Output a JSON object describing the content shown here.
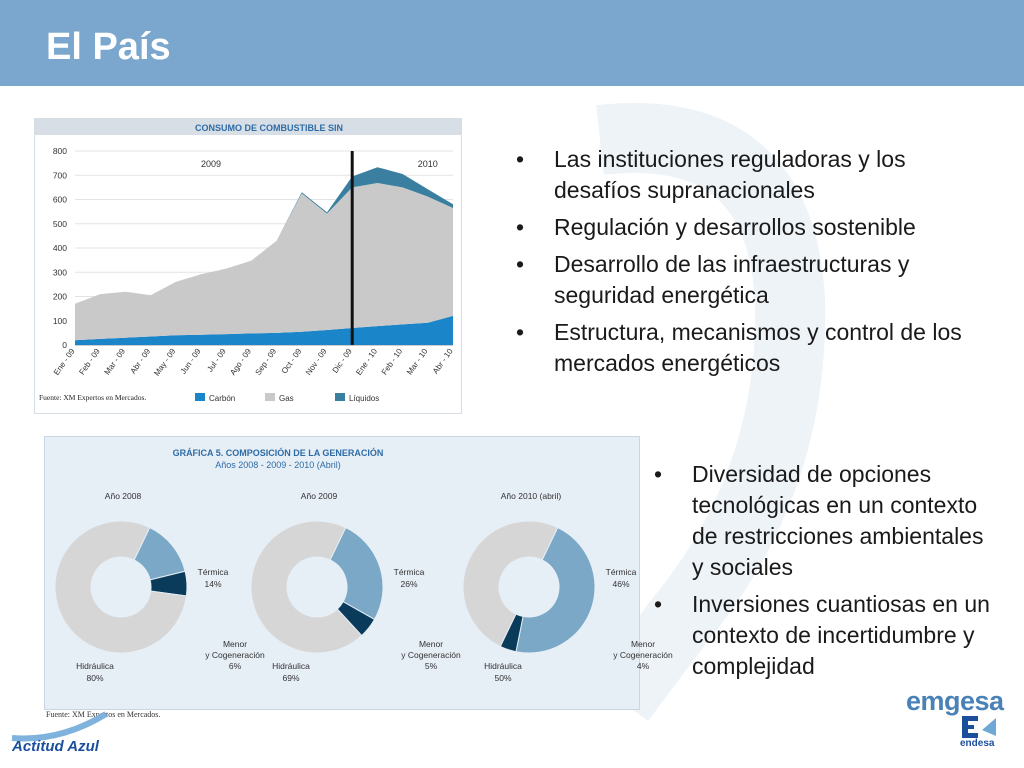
{
  "header": {
    "title": "El País"
  },
  "chart1": {
    "title": "CONSUMO DE COMBUSTIBLE SIN",
    "source": "Fuente: XM Expertos en Mercados.",
    "chart_data": {
      "type": "area",
      "title": "CONSUMO DE COMBUSTIBLE SIN",
      "categories": [
        "Ene - 09",
        "Feb - 09",
        "Mar - 09",
        "Abr - 09",
        "May - 09",
        "Jun - 09",
        "Jul - 09",
        "Ago - 09",
        "Sep - 09",
        "Oct - 09",
        "Nov - 09",
        "Dic - 09",
        "Ene - 10",
        "Feb - 10",
        "Mar - 10",
        "Abr - 10"
      ],
      "series": [
        {
          "name": "Carbón",
          "values": [
            20,
            25,
            30,
            35,
            40,
            42,
            45,
            48,
            50,
            55,
            62,
            70,
            78,
            85,
            92,
            120
          ]
        },
        {
          "name": "Gas",
          "values": [
            150,
            185,
            190,
            170,
            220,
            250,
            270,
            300,
            380,
            570,
            480,
            580,
            590,
            565,
            520,
            445
          ]
        },
        {
          "name": "Líquidos",
          "values": [
            0,
            0,
            0,
            0,
            0,
            0,
            0,
            0,
            0,
            5,
            5,
            45,
            65,
            55,
            30,
            15
          ]
        }
      ],
      "ylim": [
        0,
        800
      ],
      "yticks": [
        0,
        100,
        200,
        300,
        400,
        500,
        600,
        700,
        800
      ],
      "annotations": [
        "2009",
        "2010"
      ],
      "marker_category": "Dic - 09",
      "colors": {
        "Carbón": "#1a85c8",
        "Gas": "#c9c9c9",
        "Líquidos": "#3a7fa0"
      }
    }
  },
  "chart2": {
    "title": "GRÁFICA 5. COMPOSICIÓN DE LA GENERACIÓN",
    "subtitle": "Años 2008 - 2009 - 2010 (Abril)",
    "source": "Fuente: XM Expertos en Mercados.",
    "chart_data": [
      {
        "type": "pie",
        "title": "Año 2008",
        "labels": [
          "Térmica",
          "Menor y Cogeneración",
          "Hidráulica"
        ],
        "values": [
          14,
          6,
          80
        ]
      },
      {
        "type": "pie",
        "title": "Año 2009",
        "labels": [
          "Térmica",
          "Menor y Cogeneración",
          "Hidráulica"
        ],
        "values": [
          26,
          5,
          69
        ]
      },
      {
        "type": "pie",
        "title": "Año 2010 (abril)",
        "labels": [
          "Térmica",
          "Menor y Cogeneración",
          "Hidráulica"
        ],
        "values": [
          46,
          4,
          50
        ]
      }
    ],
    "pies": [
      {
        "year": "Año 2008",
        "termica": "Térmica",
        "termica_pct": "14%",
        "menor1": "Menor",
        "menor2": "y Cogeneración",
        "menor_pct": "6%",
        "hidraulica": "Hidráulica",
        "hidraulica_pct": "80%"
      },
      {
        "year": "Año 2009",
        "termica": "Térmica",
        "termica_pct": "26%",
        "menor1": "Menor",
        "menor2": "y Cogeneración",
        "menor_pct": "5%",
        "hidraulica": "Hidráulica",
        "hidraulica_pct": "69%"
      },
      {
        "year": "Año 2010 (abril)",
        "termica": "Térmica",
        "termica_pct": "46%",
        "menor1": "Menor",
        "menor2": "y Cogeneración",
        "menor_pct": "4%",
        "hidraulica": "Hidráulica",
        "hidraulica_pct": "50%"
      }
    ],
    "colors": {
      "termica": "#7aa8c6",
      "menor": "#0b3b5a",
      "hidraulica": "#d6d6d6"
    }
  },
  "bullets_top": [
    "Las instituciones reguladoras y los desafíos supranacionales",
    "Regulación y desarrollos sostenible",
    "Desarrollo de las infraestructuras y seguridad energética",
    "Estructura, mecanismos y control de los mercados energéticos"
  ],
  "bullets_bottom": [
    "Diversidad de opciones tecnológicas en un contexto de restricciones ambientales y sociales",
    "Inversiones cuantiosas en un contexto de incertidumbre y complejidad"
  ],
  "bullet_symbol": "•",
  "footer": {
    "left_brand": "Actitud Azul",
    "logo_text": "emgesa",
    "logo_sub": "endesa"
  }
}
